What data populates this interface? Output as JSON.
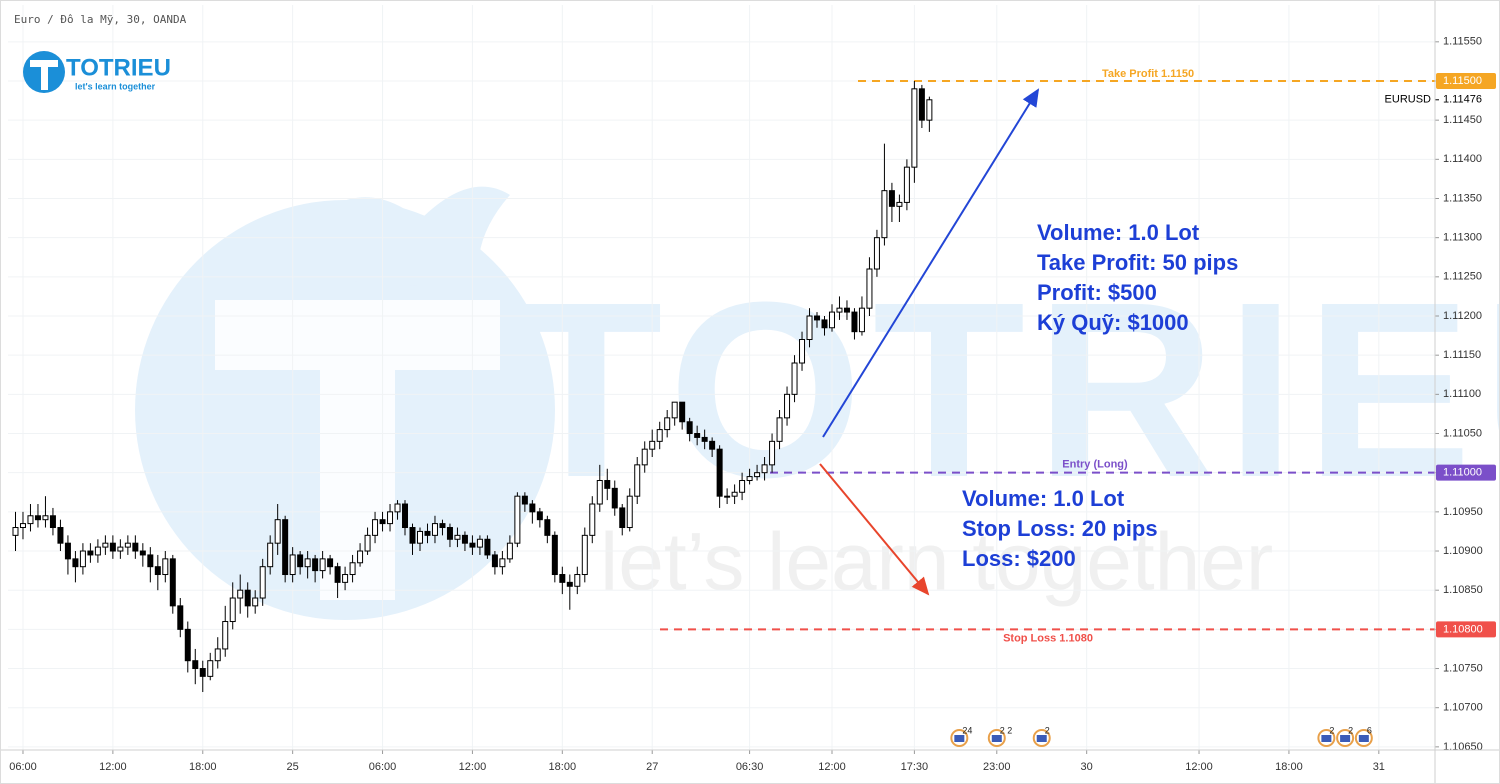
{
  "chart_data": {
    "type": "candlestick",
    "title": "Euro / Đô la Mỹ, 30, OANDA",
    "symbol": "EURUSD",
    "xlim": [
      -2,
      188.5
    ],
    "ylim": [
      1.10646,
      1.11597
    ],
    "grid": true,
    "up_color": "#ffffff",
    "down_color": "#000000",
    "xticks": [
      {
        "value": 0,
        "label": "06:00"
      },
      {
        "value": 12,
        "label": "12:00"
      },
      {
        "value": 24,
        "label": "18:00"
      },
      {
        "value": 36,
        "label": "25"
      },
      {
        "value": 48,
        "label": "06:00"
      },
      {
        "value": 60,
        "label": "12:00"
      },
      {
        "value": 72,
        "label": "18:00"
      },
      {
        "value": 84,
        "label": "27"
      },
      {
        "value": 97,
        "label": "06:30"
      },
      {
        "value": 108,
        "label": "12:00"
      },
      {
        "value": 119,
        "label": "17:30"
      },
      {
        "value": 130,
        "label": "23:00"
      },
      {
        "value": 142,
        "label": "30"
      },
      {
        "value": 157,
        "label": "12:00"
      },
      {
        "value": 169,
        "label": "18:00"
      },
      {
        "value": 181,
        "label": "31"
      }
    ],
    "yticks": [
      {
        "value": 1.1065,
        "label": "1.10650"
      },
      {
        "value": 1.107,
        "label": "1.10700"
      },
      {
        "value": 1.1075,
        "label": "1.10750"
      },
      {
        "value": 1.108,
        "label": "1.10800"
      },
      {
        "value": 1.1085,
        "label": "1.10850"
      },
      {
        "value": 1.109,
        "label": "1.10900"
      },
      {
        "value": 1.1095,
        "label": "1.10950"
      },
      {
        "value": 1.11,
        "label": "1.11000"
      },
      {
        "value": 1.1105,
        "label": "1.11050"
      },
      {
        "value": 1.111,
        "label": "1.11100"
      },
      {
        "value": 1.1115,
        "label": "1.11150"
      },
      {
        "value": 1.112,
        "label": "1.11200"
      },
      {
        "value": 1.1125,
        "label": "1.11250"
      },
      {
        "value": 1.113,
        "label": "1.11300"
      },
      {
        "value": 1.1135,
        "label": "1.11350"
      },
      {
        "value": 1.114,
        "label": "1.11400"
      },
      {
        "value": 1.1145,
        "label": "1.11450"
      },
      {
        "value": 1.115,
        "label": "1.11500"
      },
      {
        "value": 1.1155,
        "label": "1.11550"
      }
    ],
    "x": [
      -1,
      0,
      1,
      2,
      3,
      4,
      5,
      6,
      7,
      8,
      9,
      10,
      11,
      12,
      13,
      14,
      15,
      16,
      17,
      18,
      19,
      20,
      21,
      22,
      23,
      24,
      25,
      26,
      27,
      28,
      29,
      30,
      31,
      32,
      33,
      34,
      35,
      36,
      37,
      38,
      39,
      40,
      41,
      42,
      43,
      44,
      45,
      46,
      47,
      48,
      49,
      50,
      51,
      52,
      53,
      54,
      55,
      56,
      57,
      58,
      59,
      60,
      61,
      62,
      63,
      64,
      65,
      66,
      67,
      68,
      69,
      70,
      71,
      72,
      73,
      74,
      75,
      76,
      77,
      78,
      79,
      80,
      81,
      82,
      83,
      84,
      85,
      86,
      87,
      88,
      89,
      90,
      91,
      92,
      93,
      94,
      95,
      96,
      97,
      98,
      99,
      100,
      101,
      102,
      103,
      104,
      105,
      106,
      107,
      108,
      109,
      110,
      111,
      112,
      113,
      114,
      115,
      116,
      117,
      118,
      119,
      120,
      121
    ],
    "open": [
      1.1092,
      1.1093,
      1.10935,
      1.10945,
      1.1094,
      1.10945,
      1.1093,
      1.1091,
      1.1089,
      1.1088,
      1.109,
      1.10895,
      1.10905,
      1.1091,
      1.109,
      1.10905,
      1.1091,
      1.109,
      1.10895,
      1.1088,
      1.1087,
      1.1089,
      1.1083,
      1.108,
      1.1076,
      1.1075,
      1.1074,
      1.1076,
      1.10775,
      1.1081,
      1.1084,
      1.1085,
      1.1083,
      1.1084,
      1.1088,
      1.1091,
      1.1094,
      1.1087,
      1.10895,
      1.1088,
      1.1089,
      1.10875,
      1.1089,
      1.1088,
      1.1086,
      1.1087,
      1.10885,
      1.109,
      1.1092,
      1.1094,
      1.10935,
      1.1095,
      1.1096,
      1.1093,
      1.1091,
      1.10925,
      1.1092,
      1.10935,
      1.1093,
      1.10915,
      1.1092,
      1.1091,
      1.10905,
      1.10915,
      1.10895,
      1.1088,
      1.1089,
      1.1091,
      1.1097,
      1.1096,
      1.1095,
      1.1094,
      1.1092,
      1.1087,
      1.1086,
      1.10855,
      1.1087,
      1.1092,
      1.1096,
      1.1099,
      1.1098,
      1.10955,
      1.1093,
      1.1097,
      1.1101,
      1.1103,
      1.1104,
      1.11055,
      1.1107,
      1.1109,
      1.11065,
      1.1105,
      1.11045,
      1.1104,
      1.1103,
      1.1097,
      1.1097,
      1.10975,
      1.1099,
      1.10995,
      1.11,
      1.1101,
      1.1104,
      1.1107,
      1.111,
      1.1114,
      1.1117,
      1.112,
      1.11195,
      1.11185,
      1.11205,
      1.1121,
      1.11205,
      1.1118,
      1.1121,
      1.1126,
      1.113,
      1.1136,
      1.1134,
      1.11345,
      1.1139,
      1.1149,
      1.1145
    ],
    "high": [
      1.1095,
      1.1095,
      1.1096,
      1.1096,
      1.1097,
      1.10955,
      1.1094,
      1.1092,
      1.109,
      1.1091,
      1.1091,
      1.10915,
      1.1092,
      1.1092,
      1.10915,
      1.1092,
      1.1092,
      1.1091,
      1.10905,
      1.10895,
      1.109,
      1.10895,
      1.1084,
      1.1081,
      1.10775,
      1.1076,
      1.1077,
      1.1079,
      1.1083,
      1.1086,
      1.1087,
      1.1086,
      1.1085,
      1.1089,
      1.1092,
      1.1096,
      1.10945,
      1.10905,
      1.109,
      1.109,
      1.10895,
      1.109,
      1.10895,
      1.10885,
      1.1088,
      1.10895,
      1.1091,
      1.1093,
      1.1095,
      1.1095,
      1.1096,
      1.10965,
      1.10965,
      1.10935,
      1.1093,
      1.10935,
      1.10945,
      1.1094,
      1.10935,
      1.1093,
      1.10925,
      1.1092,
      1.1092,
      1.1092,
      1.109,
      1.109,
      1.1092,
      1.10975,
      1.10975,
      1.10965,
      1.10955,
      1.10945,
      1.10925,
      1.1088,
      1.1087,
      1.1088,
      1.1093,
      1.1097,
      1.1101,
      1.11005,
      1.1099,
      1.1096,
      1.1098,
      1.1102,
      1.1104,
      1.11055,
      1.11065,
      1.1108,
      1.1109,
      1.1109,
      1.1107,
      1.1106,
      1.11055,
      1.11045,
      1.11035,
      1.1098,
      1.10985,
      1.11,
      1.11005,
      1.1101,
      1.1102,
      1.1105,
      1.1108,
      1.1111,
      1.1115,
      1.1118,
      1.1121,
      1.11205,
      1.112,
      1.11215,
      1.11225,
      1.1122,
      1.1121,
      1.11225,
      1.11275,
      1.1131,
      1.1142,
      1.1137,
      1.11355,
      1.114,
      1.115,
      1.11495,
      1.1148
    ],
    "low": [
      1.109,
      1.10915,
      1.10925,
      1.1093,
      1.1093,
      1.1092,
      1.109,
      1.1087,
      1.1086,
      1.1087,
      1.10885,
      1.10885,
      1.10895,
      1.1089,
      1.1089,
      1.10895,
      1.1089,
      1.1088,
      1.1086,
      1.1085,
      1.1086,
      1.1082,
      1.1079,
      1.10745,
      1.1073,
      1.1072,
      1.10735,
      1.1075,
      1.10765,
      1.108,
      1.1082,
      1.10815,
      1.1082,
      1.1083,
      1.1087,
      1.10895,
      1.1086,
      1.1086,
      1.1087,
      1.10865,
      1.1086,
      1.10865,
      1.1087,
      1.1084,
      1.1085,
      1.1086,
      1.1088,
      1.10895,
      1.1091,
      1.10925,
      1.10925,
      1.1094,
      1.1092,
      1.10895,
      1.109,
      1.1091,
      1.1091,
      1.1092,
      1.10905,
      1.10905,
      1.109,
      1.10895,
      1.10895,
      1.1089,
      1.1087,
      1.1087,
      1.10885,
      1.10905,
      1.1095,
      1.10935,
      1.1093,
      1.1091,
      1.1086,
      1.10845,
      1.10825,
      1.10845,
      1.1086,
      1.1091,
      1.1095,
      1.10965,
      1.10945,
      1.1092,
      1.10925,
      1.1096,
      1.11,
      1.1102,
      1.1103,
      1.11045,
      1.1106,
      1.11055,
      1.1104,
      1.11035,
      1.1103,
      1.1102,
      1.10955,
      1.1096,
      1.1096,
      1.10965,
      1.10985,
      1.1099,
      1.1099,
      1.11,
      1.1103,
      1.1106,
      1.1109,
      1.1113,
      1.1116,
      1.11185,
      1.11175,
      1.1118,
      1.11195,
      1.11195,
      1.1117,
      1.11175,
      1.112,
      1.1125,
      1.1129,
      1.1132,
      1.1132,
      1.11335,
      1.1137,
      1.1144,
      1.11435
    ],
    "close": [
      1.1093,
      1.10935,
      1.10945,
      1.1094,
      1.10945,
      1.1093,
      1.1091,
      1.1089,
      1.1088,
      1.109,
      1.10895,
      1.10905,
      1.1091,
      1.109,
      1.10905,
      1.1091,
      1.109,
      1.10895,
      1.1088,
      1.1087,
      1.1089,
      1.1083,
      1.108,
      1.1076,
      1.1075,
      1.1074,
      1.1076,
      1.10775,
      1.1081,
      1.1084,
      1.1085,
      1.1083,
      1.1084,
      1.1088,
      1.1091,
      1.1094,
      1.1087,
      1.10895,
      1.1088,
      1.1089,
      1.10875,
      1.1089,
      1.1088,
      1.1086,
      1.1087,
      1.10885,
      1.109,
      1.1092,
      1.1094,
      1.10935,
      1.1095,
      1.1096,
      1.1093,
      1.1091,
      1.10925,
      1.1092,
      1.10935,
      1.1093,
      1.10915,
      1.1092,
      1.1091,
      1.10905,
      1.10915,
      1.10895,
      1.1088,
      1.1089,
      1.1091,
      1.1097,
      1.1096,
      1.1095,
      1.1094,
      1.1092,
      1.1087,
      1.1086,
      1.10855,
      1.1087,
      1.1092,
      1.1096,
      1.1099,
      1.1098,
      1.10955,
      1.1093,
      1.1097,
      1.1101,
      1.1103,
      1.1104,
      1.11055,
      1.1107,
      1.1109,
      1.11065,
      1.1105,
      1.11045,
      1.1104,
      1.1103,
      1.1097,
      1.1097,
      1.10975,
      1.1099,
      1.10995,
      1.11,
      1.1101,
      1.1104,
      1.1107,
      1.111,
      1.1114,
      1.1117,
      1.112,
      1.11195,
      1.11185,
      1.11205,
      1.1121,
      1.11205,
      1.1118,
      1.1121,
      1.1126,
      1.113,
      1.1136,
      1.1134,
      1.11345,
      1.1139,
      1.1149,
      1.1145,
      1.11476
    ],
    "last_price": {
      "value": 1.11476,
      "label": "1.11476"
    },
    "levels": [
      {
        "name": "Take Profit 1.1150",
        "value": 1.115,
        "label": "1.11500",
        "color": "#f5a623"
      },
      {
        "name": "Entry (Long)",
        "value": 1.11,
        "label": "1.11000",
        "color": "#7b4fc9"
      },
      {
        "name": "Stop Loss 1.1080",
        "value": 1.108,
        "label": "1.10800",
        "color": "#f0504a"
      }
    ],
    "annotations": [
      [
        "Volume: 1.0 Lot",
        "Take Profit: 50 pips",
        "Profit: $500",
        "Ký Quỹ: $1000"
      ],
      [
        "Volume: 1.0 Lot",
        "Stop Loss: 20 pips",
        "Loss: $200"
      ]
    ],
    "events": [
      {
        "x": 125,
        "label": "24"
      },
      {
        "x": 130,
        "label": "2 2"
      },
      {
        "x": 136,
        "label": "2"
      },
      {
        "x": 174,
        "label": "2"
      },
      {
        "x": 176.5,
        "label": "2"
      },
      {
        "x": 179,
        "label": "6"
      }
    ]
  },
  "logo": {
    "brand": "TOTRIEU",
    "slogan": "let's learn together"
  },
  "watermark": {
    "brand": "TOTRIEU",
    "slogan": "let’s learn together"
  }
}
